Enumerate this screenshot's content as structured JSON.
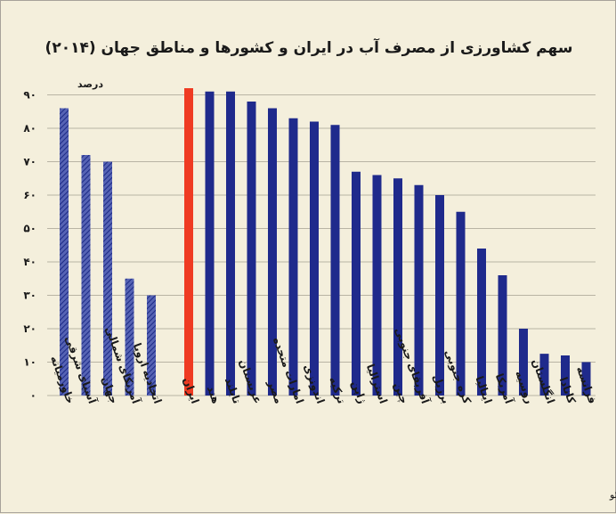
{
  "chart_data": {
    "type": "bar",
    "title": "سهم کشاورزی از مصرف آب در ایران و کشورها و مناطق جهان (۲۰۱۴)",
    "ylabel": "درصد",
    "ylim": [
      0,
      95
    ],
    "yticks": [
      "۰",
      "۱۰",
      "۲۰",
      "۳۰",
      "۴۰",
      "۵۰",
      "۶۰",
      "۷۰",
      "۸۰",
      "۹۰"
    ],
    "grid": true,
    "regions": [
      {
        "name": "خاورمیانه",
        "value": 86
      },
      {
        "name": "آسیای شرقی",
        "value": 72
      },
      {
        "name": "جهان",
        "value": 70
      },
      {
        "name": "آمریکای شمالی",
        "value": 35
      },
      {
        "name": "اتحادیه اروپا",
        "value": 30
      }
    ],
    "countries": [
      {
        "name": "ایران",
        "value": 92,
        "highlight": true
      },
      {
        "name": "هند",
        "value": 91
      },
      {
        "name": "تایلند",
        "value": 91
      },
      {
        "name": "عربستان",
        "value": 88
      },
      {
        "name": "مصر",
        "value": 86
      },
      {
        "name": "امارات متحده",
        "value": 83
      },
      {
        "name": "اندونزی",
        "value": 82
      },
      {
        "name": "ترکیه",
        "value": 81
      },
      {
        "name": "ژاپن",
        "value": 67
      },
      {
        "name": "استرالیا",
        "value": 66
      },
      {
        "name": "چین",
        "value": 65
      },
      {
        "name": "آفریقای جنوبی",
        "value": 63
      },
      {
        "name": "برزیل",
        "value": 60
      },
      {
        "name": "کره جنوبی",
        "value": 55
      },
      {
        "name": "ایتالیا",
        "value": 44
      },
      {
        "name": "آمریکا",
        "value": 36
      },
      {
        "name": "روسیه",
        "value": 20
      },
      {
        "name": "انگلستان",
        "value": 12.5
      },
      {
        "name": "کانادا",
        "value": 12
      },
      {
        "name": "فرانسه",
        "value": 10
      }
    ],
    "colors": {
      "region": "#2a3b96",
      "country": "#1f2a8c",
      "highlight": "#ef3b22",
      "grid": "#b9b4a4",
      "background": "#f4efdc"
    }
  },
  "source": "تحلیل و استنتاج: احسان سلطانی بر اساس داده های آکواستات، فائو"
}
